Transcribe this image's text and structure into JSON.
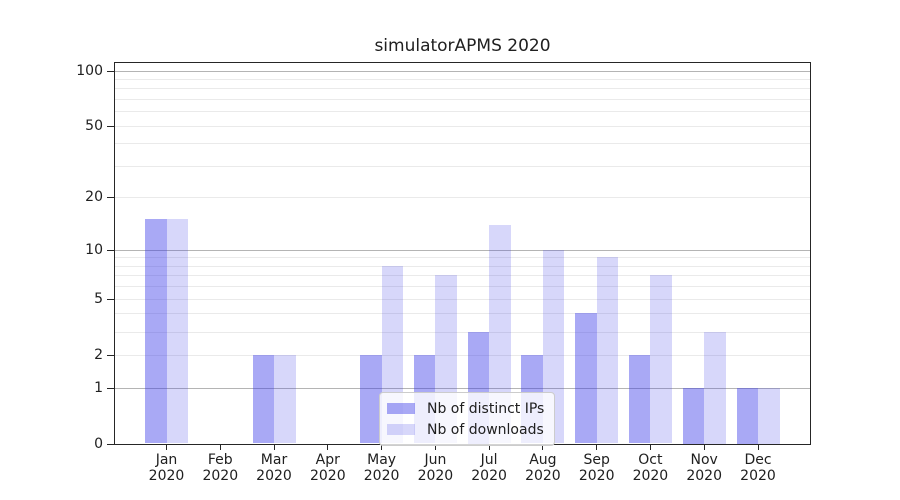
{
  "title": "simulatorAPMS 2020",
  "colors": {
    "bar_distinct_ips": "rgba(56,56,232,0.43)",
    "bar_downloads": "rgba(56,56,232,0.20)",
    "major_gridline": "#b4b4b4",
    "minor_gridline": "#eaeaea",
    "spine": "#262626",
    "text": "#202020",
    "legend_border": "#cccccc"
  },
  "chart_data": {
    "type": "bar",
    "title": "simulatorAPMS 2020",
    "categories": [
      "Jan",
      "Feb",
      "Mar",
      "Apr",
      "May",
      "Jun",
      "Jul",
      "Aug",
      "Sep",
      "Oct",
      "Nov",
      "Dec"
    ],
    "category_year": "2020",
    "series": [
      {
        "name": "Nb of distinct IPs",
        "color": "rgba(56,56,232,0.43)",
        "values": [
          15,
          0,
          2,
          0,
          2,
          2,
          3,
          2,
          4,
          2,
          1,
          1
        ]
      },
      {
        "name": "Nb of downloads",
        "color": "rgba(56,56,232,0.20)",
        "values": [
          15,
          0,
          2,
          0,
          8,
          7,
          14,
          10,
          9,
          7,
          3,
          1
        ]
      }
    ],
    "xlabel": "",
    "ylabel": "",
    "yscale": "log10(1+y)",
    "ylim": [
      0,
      110
    ],
    "yticks": [
      0,
      1,
      2,
      5,
      10,
      20,
      50,
      100
    ],
    "major_gridlines": [
      1,
      10,
      100
    ],
    "minor_gridlines": [
      2,
      3,
      4,
      5,
      6,
      7,
      8,
      9,
      20,
      30,
      40,
      50,
      60,
      70,
      80,
      90
    ],
    "grid": true,
    "legend_position": "lower center"
  }
}
